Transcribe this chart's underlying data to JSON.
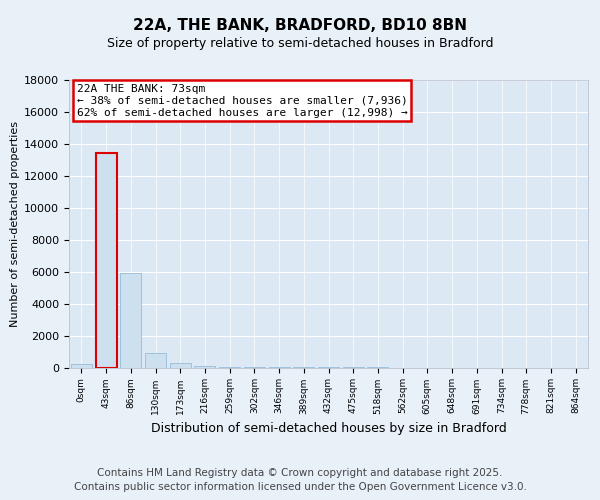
{
  "title": "22A, THE BANK, BRADFORD, BD10 8BN",
  "subtitle": "Size of property relative to semi-detached houses in Bradford",
  "xlabel": "Distribution of semi-detached houses by size in Bradford",
  "ylabel": "Number of semi-detached properties",
  "property_label": "22A THE BANK: 73sqm",
  "pct_smaller": 38,
  "pct_larger": 62,
  "n_smaller": 7936,
  "n_larger": 12998,
  "bar_labels": [
    "0sqm",
    "43sqm",
    "86sqm",
    "130sqm",
    "173sqm",
    "216sqm",
    "259sqm",
    "302sqm",
    "346sqm",
    "389sqm",
    "432sqm",
    "475sqm",
    "518sqm",
    "562sqm",
    "605sqm",
    "648sqm",
    "691sqm",
    "734sqm",
    "778sqm",
    "821sqm",
    "864sqm"
  ],
  "bar_values": [
    200,
    13400,
    5900,
    900,
    300,
    70,
    20,
    10,
    5,
    3,
    2,
    1,
    1,
    0,
    0,
    0,
    0,
    0,
    0,
    0,
    0
  ],
  "bar_color": "#cce0f0",
  "bar_edge_color": "#8ab4d4",
  "highlight_bar_index": 1,
  "highlight_edge_color": "#dd0000",
  "ylim": [
    0,
    18000
  ],
  "yticks": [
    0,
    2000,
    4000,
    6000,
    8000,
    10000,
    12000,
    14000,
    16000,
    18000
  ],
  "background_color": "#e8f0f8",
  "plot_bg_color": "#dce8f4",
  "footer_text": "Contains HM Land Registry data © Crown copyright and database right 2025.\nContains public sector information licensed under the Open Government Licence v3.0.",
  "title_fontsize": 11,
  "subtitle_fontsize": 9,
  "ylabel_fontsize": 8,
  "xlabel_fontsize": 9,
  "annotation_fontsize": 8,
  "footer_fontsize": 7.5
}
